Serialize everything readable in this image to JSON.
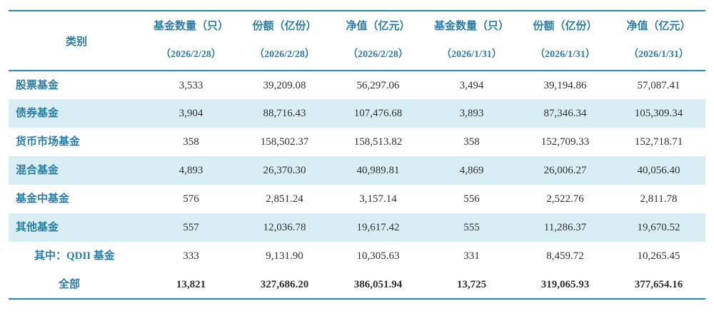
{
  "chart_data": {
    "type": "table",
    "header": [
      {
        "label": "类别",
        "date": ""
      },
      {
        "label": "基金数量（只）",
        "date": "（2026/2/28）"
      },
      {
        "label": "份额（亿份）",
        "date": "（2026/2/28）"
      },
      {
        "label": "净值（亿元）",
        "date": "（2026/2/28）"
      },
      {
        "label": "基金数量（只）",
        "date": "（2026/1/31）"
      },
      {
        "label": "份额（亿份）",
        "date": "（2026/1/31）"
      },
      {
        "label": "净值（亿元）",
        "date": "（2026/1/31）"
      }
    ],
    "rows": [
      {
        "category": "股票基金",
        "indent": 0,
        "bold": false,
        "values": [
          "3,533",
          "39,209.08",
          "56,297.06",
          "3,494",
          "39,194.86",
          "57,087.41"
        ]
      },
      {
        "category": "债券基金",
        "indent": 0,
        "bold": false,
        "values": [
          "3,904",
          "88,716.43",
          "107,476.68",
          "3,893",
          "87,346.34",
          "105,309.34"
        ]
      },
      {
        "category": "货币市场基金",
        "indent": 0,
        "bold": false,
        "values": [
          "358",
          "158,502.37",
          "158,513.82",
          "358",
          "152,709.33",
          "152,718.71"
        ]
      },
      {
        "category": "混合基金",
        "indent": 0,
        "bold": false,
        "values": [
          "4,893",
          "26,370.30",
          "40,989.81",
          "4,869",
          "26,006.27",
          "40,056.40"
        ]
      },
      {
        "category": "基金中基金",
        "indent": 0,
        "bold": false,
        "values": [
          "576",
          "2,851.24",
          "3,157.14",
          "556",
          "2,522.76",
          "2,811.78"
        ]
      },
      {
        "category": "其他基金",
        "indent": 0,
        "bold": false,
        "values": [
          "557",
          "12,036.78",
          "19,617.42",
          "555",
          "11,286.37",
          "19,670.52"
        ]
      },
      {
        "category": "其中：QDII 基金",
        "indent": 1,
        "bold": false,
        "values": [
          "333",
          "9,131.90",
          "10,305.63",
          "331",
          "8,459.72",
          "10,265.45"
        ]
      },
      {
        "category": "全部",
        "indent": 2,
        "bold": true,
        "values": [
          "13,821",
          "327,686.20",
          "386,051.94",
          "13,725",
          "319,065.93",
          "377,654.16"
        ]
      }
    ]
  },
  "colors": {
    "accent": "#2c7da4",
    "stripe": "#d8edf4",
    "line": "#2e86a6",
    "number": "#2f2f2f"
  }
}
